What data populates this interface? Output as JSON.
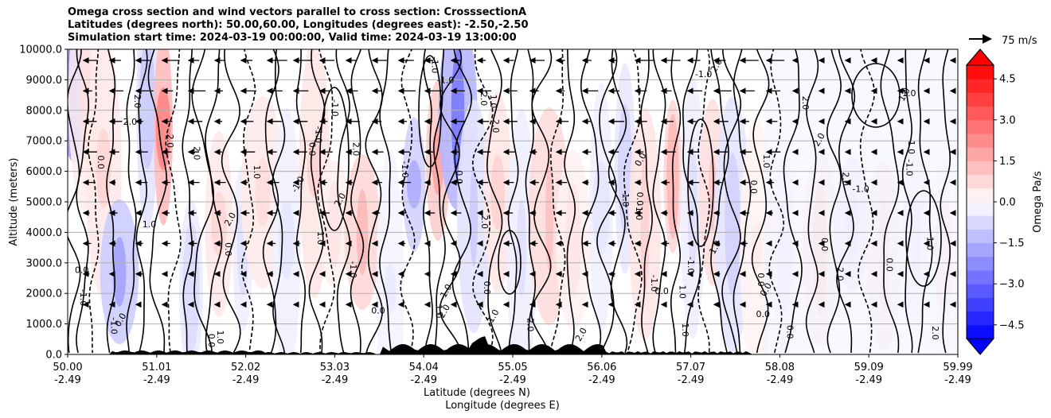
{
  "chart_data": {
    "type": "heatmap",
    "title_lines": [
      "Omega cross section and wind vectors parallel to cross section: CrosssectionA",
      "Latitudes (degrees north): 50.00,60.00, Longitudes (degrees east): -2.50,-2.50",
      "Simulation start time: 2024-03-19 00:00:00, Valid time: 2024-03-19 13:00:00"
    ],
    "ylabel": "Altitude (meters)",
    "xlabel_lines": [
      "Latitude (degrees N)",
      "Longitude (degrees E)"
    ],
    "ylim": [
      0,
      10000
    ],
    "y_ticks": [
      "0.0",
      "1000.0",
      "2000.0",
      "3000.0",
      "4000.0",
      "5000.0",
      "6000.0",
      "7000.0",
      "8000.0",
      "9000.0",
      "10000.0"
    ],
    "x_ticks": [
      {
        "lat": "50.00",
        "lon": "-2.49"
      },
      {
        "lat": "51.01",
        "lon": "-2.49"
      },
      {
        "lat": "52.02",
        "lon": "-2.49"
      },
      {
        "lat": "53.03",
        "lon": "-2.49"
      },
      {
        "lat": "54.04",
        "lon": "-2.49"
      },
      {
        "lat": "55.05",
        "lon": "-2.49"
      },
      {
        "lat": "56.06",
        "lon": "-2.49"
      },
      {
        "lat": "57.07",
        "lon": "-2.49"
      },
      {
        "lat": "58.08",
        "lon": "-2.49"
      },
      {
        "lat": "59.09",
        "lon": "-2.49"
      },
      {
        "lat": "59.99",
        "lon": "-2.49"
      }
    ],
    "colorbar": {
      "label": "Omega Pa/s",
      "range": [
        -5,
        5
      ],
      "ticks": [
        "−4.5",
        "−3.0",
        "−1.5",
        "0.0",
        "1.5",
        "3.0",
        "4.5"
      ],
      "tick_values": [
        -4.5,
        -3.0,
        -1.5,
        0.0,
        1.5,
        3.0,
        4.5
      ]
    },
    "quiver_key": "75 m/s",
    "contour_labels": [
      "-1.0",
      "0.0",
      "1.0",
      "2.0"
    ],
    "colors": {
      "positive": "#ff0000",
      "negative": "#0000ff",
      "neutral": "#ffffff"
    }
  }
}
